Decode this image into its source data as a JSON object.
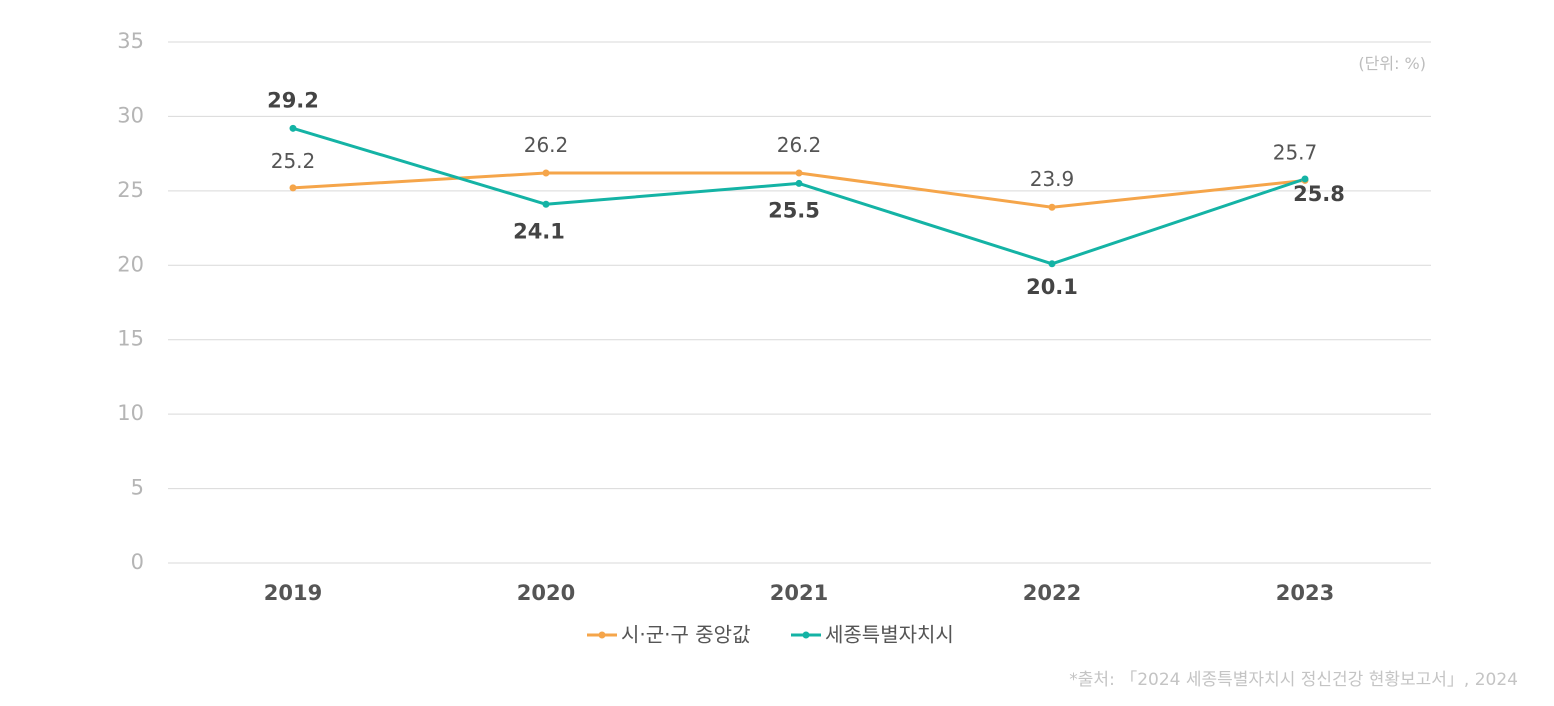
{
  "chart_data": {
    "type": "line",
    "categories": [
      "2019",
      "2020",
      "2021",
      "2022",
      "2023"
    ],
    "series": [
      {
        "name": "시·군·구 중앙값",
        "values": [
          25.2,
          26.2,
          26.2,
          23.9,
          25.7
        ],
        "color": "#f5a54a"
      },
      {
        "name": "세종특별자치시",
        "values": [
          29.2,
          24.1,
          25.5,
          20.1,
          25.8
        ],
        "color": "#14b3a5"
      }
    ],
    "data_labels": {
      "series_0": [
        "25.2",
        "26.2",
        "26.2",
        "23.9",
        "25.7"
      ],
      "series_1": [
        "29.2",
        "24.1",
        "25.5",
        "20.1",
        "25.8"
      ]
    },
    "yticks": [
      "0",
      "5",
      "10",
      "15",
      "20",
      "25",
      "30",
      "35"
    ],
    "ylim": [
      0,
      35
    ],
    "ystep": 5,
    "unit_note": "(단위: %)",
    "legend_position": "bottom-center",
    "grid": true
  },
  "source_note": "*출처: 「2024 세종특별자치시 정신건강 현황보고서」, 2024"
}
